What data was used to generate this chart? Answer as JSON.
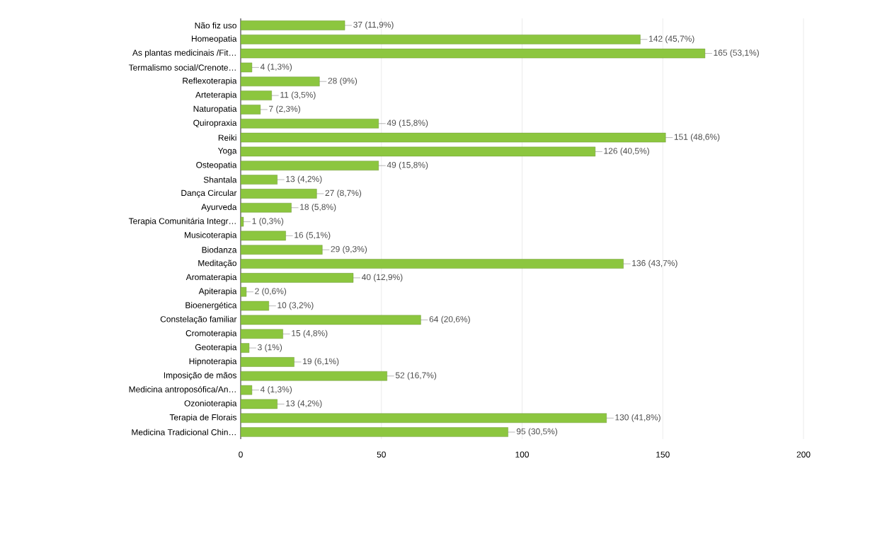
{
  "chart_data": {
    "type": "bar",
    "orientation": "horizontal",
    "categories": [
      "Não fiz uso",
      "Homeopatia",
      "As plantas medicinais /Fit…",
      "Termalismo social/Crenote…",
      "Reflexoterapia",
      "Arteterapia",
      "Naturopatia",
      "Quiropraxia",
      "Reiki",
      "Yoga",
      "Osteopatia",
      "Shantala",
      "Dança Circular",
      "Ayurveda",
      "Terapia Comunitária Integr…",
      "Musicoterapia",
      "Biodanza",
      "Meditação",
      "Aromaterapia",
      "Apiterapia",
      "Bioenergética",
      "Constelação familiar",
      "Cromoterapia",
      "Geoterapia",
      "Hipnoterapia",
      "Imposição de mãos",
      "Medicina antroposófica/An…",
      "Ozonioterapia",
      "Terapia de Florais",
      "Medicina Tradicional Chin…"
    ],
    "values": [
      37,
      142,
      165,
      4,
      28,
      11,
      7,
      49,
      151,
      126,
      49,
      13,
      27,
      18,
      1,
      16,
      29,
      136,
      40,
      2,
      10,
      64,
      15,
      3,
      19,
      52,
      4,
      13,
      130,
      95
    ],
    "value_labels": [
      "37 (11,9%)",
      "142 (45,7%)",
      "165 (53,1%)",
      "4 (1,3%)",
      "28 (9%)",
      "11 (3,5%)",
      "7 (2,3%)",
      "49 (15,8%)",
      "151 (48,6%)",
      "126 (40,5%)",
      "49 (15,8%)",
      "13 (4,2%)",
      "27 (8,7%)",
      "18 (5,8%)",
      "1 (0,3%)",
      "16 (5,1%)",
      "29 (9,3%)",
      "136 (43,7%)",
      "40 (12,9%)",
      "2 (0,6%)",
      "10 (3,2%)",
      "64 (20,6%)",
      "15 (4,8%)",
      "3 (1%)",
      "19 (6,1%)",
      "52 (16,7%)",
      "4 (1,3%)",
      "13 (4,2%)",
      "130 (41,8%)",
      "95 (30,5%)"
    ],
    "color": "#8cc63f",
    "xlim": [
      0,
      200
    ],
    "xticks": [
      0,
      50,
      100,
      150,
      200
    ],
    "grid": "x"
  }
}
